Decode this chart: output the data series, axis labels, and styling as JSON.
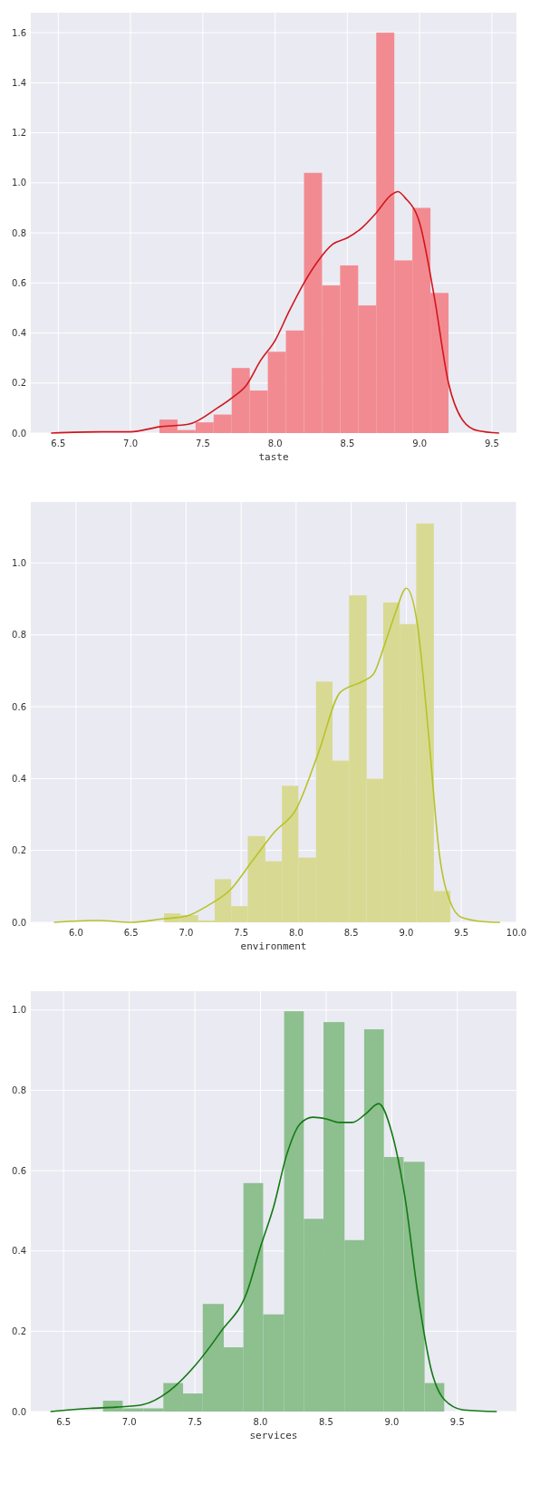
{
  "chart_data": [
    {
      "type": "histogram",
      "xlabel": "taste",
      "xlim": [
        6.31,
        9.67
      ],
      "ylim": [
        0,
        1.68
      ],
      "grid": true,
      "xticks": [
        {
          "value": 6.5,
          "label": "6.5"
        },
        {
          "value": 7,
          "label": "7.0"
        },
        {
          "value": 7.5,
          "label": "7.5"
        },
        {
          "value": 8,
          "label": "8.0"
        },
        {
          "value": 8.5,
          "label": "8.5"
        },
        {
          "value": 9,
          "label": "9.0"
        },
        {
          "value": 9.5,
          "label": "9.5"
        }
      ],
      "yticks": [
        {
          "value": 0,
          "label": "0.0"
        },
        {
          "value": 0.2,
          "label": "0.2"
        },
        {
          "value": 0.4,
          "label": "0.4"
        },
        {
          "value": 0.6,
          "label": "0.6"
        },
        {
          "value": 0.8,
          "label": "0.8"
        },
        {
          "value": 1,
          "label": "1.0"
        },
        {
          "value": 1.2,
          "label": "1.2"
        },
        {
          "value": 1.4,
          "label": "1.4"
        },
        {
          "value": 1.6,
          "label": "1.6"
        }
      ],
      "series": [
        {
          "type": "histogram",
          "color": "#f28b91",
          "bins": [
            7.2,
            7.325,
            7.45,
            7.575,
            7.7,
            7.825,
            7.95,
            8.075,
            8.2,
            8.325,
            8.45,
            8.575,
            8.7,
            8.825,
            8.95,
            9.075,
            9.2
          ],
          "values": [
            0.054,
            0.012,
            0.043,
            0.074,
            0.26,
            0.17,
            0.325,
            0.41,
            1.04,
            0.59,
            0.67,
            0.51,
            1.6,
            0.69,
            0.9,
            0.56
          ]
        },
        {
          "type": "line",
          "color": "#d0161c",
          "x": [
            6.45,
            6.8,
            7.0,
            7.2,
            7.4,
            7.6,
            7.7,
            7.8,
            7.9,
            8.0,
            8.1,
            8.2,
            8.3,
            8.4,
            8.5,
            8.6,
            8.7,
            8.8,
            8.85,
            8.9,
            9.0,
            9.1,
            9.2,
            9.3,
            9.4,
            9.55
          ],
          "values": [
            0,
            0.005,
            0.005,
            0.025,
            0.035,
            0.1,
            0.14,
            0.19,
            0.29,
            0.37,
            0.49,
            0.6,
            0.69,
            0.755,
            0.78,
            0.82,
            0.88,
            0.95,
            0.965,
            0.94,
            0.84,
            0.55,
            0.2,
            0.05,
            0.01,
            0
          ]
        }
      ]
    },
    {
      "type": "histogram",
      "xlabel": "environment",
      "xlim": [
        5.59,
        10.0
      ],
      "ylim": [
        0,
        1.17
      ],
      "grid": true,
      "xticks": [
        {
          "value": 6,
          "label": "6.0"
        },
        {
          "value": 6.5,
          "label": "6.5"
        },
        {
          "value": 7,
          "label": "7.0"
        },
        {
          "value": 7.5,
          "label": "7.5"
        },
        {
          "value": 8,
          "label": "8.0"
        },
        {
          "value": 8.5,
          "label": "8.5"
        },
        {
          "value": 9,
          "label": "9.0"
        },
        {
          "value": 9.5,
          "label": "9.5"
        },
        {
          "value": 10,
          "label": "10.0"
        }
      ],
      "yticks": [
        {
          "value": 0,
          "label": "0.0"
        },
        {
          "value": 0.2,
          "label": "0.2"
        },
        {
          "value": 0.4,
          "label": "0.4"
        },
        {
          "value": 0.6,
          "label": "0.6"
        },
        {
          "value": 0.8,
          "label": "0.8"
        },
        {
          "value": 1,
          "label": "1.0"
        }
      ],
      "series": [
        {
          "type": "histogram",
          "color": "#d8da93",
          "bins": [
            6.8,
            6.95,
            7.11,
            7.26,
            7.41,
            7.56,
            7.72,
            7.87,
            8.02,
            8.18,
            8.33,
            8.48,
            8.64,
            8.79,
            8.94,
            9.09,
            9.25,
            9.4
          ],
          "values": [
            0.025,
            0.02,
            0.005,
            0.12,
            0.045,
            0.24,
            0.17,
            0.38,
            0.18,
            0.67,
            0.45,
            0.91,
            0.4,
            0.89,
            0.83,
            1.11,
            0.087
          ]
        },
        {
          "type": "line",
          "color": "#b8c22a",
          "x": [
            5.8,
            6.2,
            6.5,
            6.8,
            7.0,
            7.2,
            7.4,
            7.6,
            7.8,
            8.0,
            8.2,
            8.4,
            8.6,
            8.7,
            8.8,
            8.9,
            9.0,
            9.1,
            9.2,
            9.3,
            9.4,
            9.5,
            9.7,
            9.85
          ],
          "values": [
            0,
            0.005,
            0,
            0.01,
            0.017,
            0.047,
            0.09,
            0.17,
            0.25,
            0.315,
            0.47,
            0.64,
            0.67,
            0.69,
            0.77,
            0.86,
            0.93,
            0.83,
            0.53,
            0.19,
            0.056,
            0.014,
            0.002,
            0
          ]
        }
      ]
    },
    {
      "type": "histogram",
      "xlabel": "services",
      "xlim": [
        6.25,
        9.95
      ],
      "ylim": [
        0,
        1.047
      ],
      "grid": true,
      "xticks": [
        {
          "value": 6.5,
          "label": "6.5"
        },
        {
          "value": 7,
          "label": "7.0"
        },
        {
          "value": 7.5,
          "label": "7.5"
        },
        {
          "value": 8,
          "label": "8.0"
        },
        {
          "value": 8.5,
          "label": "8.5"
        },
        {
          "value": 9,
          "label": "9.0"
        },
        {
          "value": 9.5,
          "label": "9.5"
        }
      ],
      "yticks": [
        {
          "value": 0,
          "label": "0.0"
        },
        {
          "value": 0.2,
          "label": "0.2"
        },
        {
          "value": 0.4,
          "label": "0.4"
        },
        {
          "value": 0.6,
          "label": "0.6"
        },
        {
          "value": 0.8,
          "label": "0.8"
        },
        {
          "value": 1,
          "label": "1.0"
        }
      ],
      "series": [
        {
          "type": "histogram",
          "color": "#8dbf8f",
          "bins": [
            6.8,
            6.95,
            7.11,
            7.26,
            7.41,
            7.56,
            7.72,
            7.87,
            8.02,
            8.18,
            8.33,
            8.48,
            8.64,
            8.79,
            8.94,
            9.09,
            9.25,
            9.4
          ],
          "values": [
            0.027,
            0.008,
            0.008,
            0.071,
            0.045,
            0.268,
            0.16,
            0.569,
            0.242,
            0.997,
            0.48,
            0.97,
            0.427,
            0.952,
            0.634,
            0.622,
            0.071
          ]
        },
        {
          "type": "line",
          "color": "#127a12",
          "x": [
            6.4,
            6.7,
            6.9,
            7.1,
            7.3,
            7.5,
            7.7,
            7.9,
            8.0,
            8.1,
            8.2,
            8.3,
            8.4,
            8.5,
            8.6,
            8.7,
            8.8,
            8.9,
            9.0,
            9.1,
            9.2,
            9.3,
            9.4,
            9.55,
            9.8
          ],
          "values": [
            0,
            0.008,
            0.011,
            0.017,
            0.05,
            0.114,
            0.2,
            0.3,
            0.41,
            0.51,
            0.64,
            0.716,
            0.733,
            0.729,
            0.72,
            0.72,
            0.741,
            0.767,
            0.695,
            0.535,
            0.29,
            0.105,
            0.03,
            0.004,
            0
          ]
        }
      ]
    }
  ]
}
